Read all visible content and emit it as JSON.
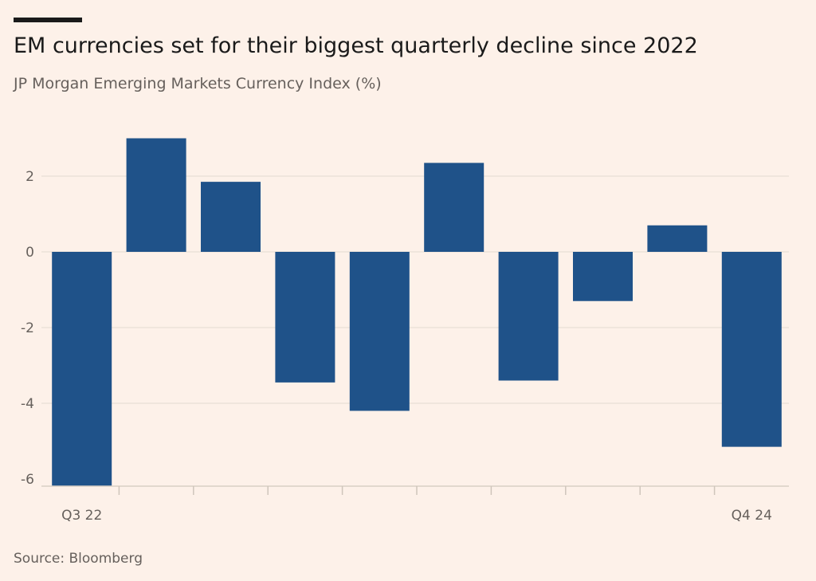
{
  "header": {
    "title": "EM currencies set for their biggest quarterly decline since 2022",
    "subtitle": "JP Morgan Emerging Markets Currency Index (%)"
  },
  "footer": {
    "source": "Source: Bloomberg"
  },
  "colors": {
    "background": "#fdf1e9",
    "bar": "#1f5289",
    "gridline": "#ebe2d9",
    "text": "#66605c"
  },
  "chart_data": {
    "type": "bar",
    "title": "EM currencies set for their biggest quarterly decline since 2022",
    "subtitle": "JP Morgan Emerging Markets Currency Index (%)",
    "xlabel": "",
    "ylabel": "",
    "categories": [
      "Q3 22",
      "",
      "",
      "",
      "",
      "",
      "",
      "",
      "",
      "Q4 24"
    ],
    "x_tick_labels": [
      {
        "index": 0,
        "label": "Q3 22"
      },
      {
        "index": 9,
        "label": "Q4 24"
      }
    ],
    "values": [
      -6.2,
      3.0,
      1.85,
      -3.45,
      -4.2,
      2.35,
      -3.4,
      -1.3,
      0.7,
      -5.15
    ],
    "ylim": [
      -6.4,
      3.4
    ],
    "yticks": [
      2,
      0,
      -2,
      -4,
      -6
    ],
    "ytick_labels": [
      "2",
      "0",
      "-2",
      "-4",
      "-6"
    ],
    "grid": true,
    "legend": "none"
  }
}
